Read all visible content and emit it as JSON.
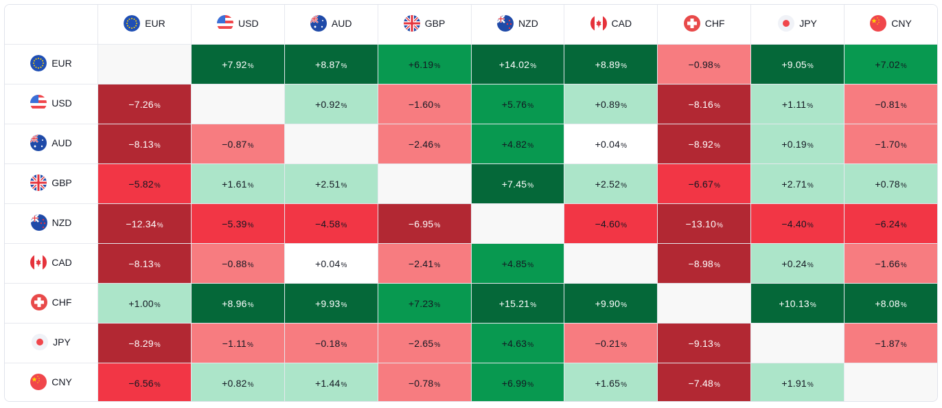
{
  "currencies": [
    {
      "code": "EUR",
      "flag": "eu-flag-icon"
    },
    {
      "code": "USD",
      "flag": "us-flag-icon"
    },
    {
      "code": "AUD",
      "flag": "au-flag-icon"
    },
    {
      "code": "GBP",
      "flag": "gb-flag-icon"
    },
    {
      "code": "NZD",
      "flag": "nz-flag-icon"
    },
    {
      "code": "CAD",
      "flag": "ca-flag-icon"
    },
    {
      "code": "CHF",
      "flag": "ch-flag-icon"
    },
    {
      "code": "JPY",
      "flag": "jp-flag-icon"
    },
    {
      "code": "CNY",
      "flag": "cn-flag-icon"
    }
  ],
  "percent_sign": "%",
  "colors": {
    "strong_up": "#056839",
    "up": "#089950",
    "light_up": "#ace5c9",
    "neutral": "#ffffff",
    "light_down": "#f77c80",
    "down": "#f23645",
    "strong_down": "#b22833",
    "diagonal": "#f8f8f8"
  },
  "matrix": [
    [
      null,
      "+7.92",
      "+8.87",
      "+6.19",
      "+14.02",
      "+8.89",
      "−0.98",
      "+9.05",
      "+7.02"
    ],
    [
      "−7.26",
      null,
      "+0.92",
      "−1.60",
      "+5.76",
      "+0.89",
      "−8.16",
      "+1.11",
      "−0.81"
    ],
    [
      "−8.13",
      "−0.87",
      null,
      "−2.46",
      "+4.82",
      "+0.04",
      "−8.92",
      "+0.19",
      "−1.70"
    ],
    [
      "−5.82",
      "+1.61",
      "+2.51",
      null,
      "+7.45",
      "+2.52",
      "−6.67",
      "+2.71",
      "+0.78"
    ],
    [
      "−12.34",
      "−5.39",
      "−4.58",
      "−6.95",
      null,
      "−4.60",
      "−13.10",
      "−4.40",
      "−6.24"
    ],
    [
      "−8.13",
      "−0.88",
      "+0.04",
      "−2.41",
      "+4.85",
      null,
      "−8.98",
      "+0.24",
      "−1.66"
    ],
    [
      "+1.00",
      "+8.96",
      "+9.93",
      "+7.23",
      "+15.21",
      "+9.90",
      null,
      "+10.13",
      "+8.08"
    ],
    [
      "−8.29",
      "−1.11",
      "−0.18",
      "−2.65",
      "+4.63",
      "−0.21",
      "−9.13",
      null,
      "−1.87"
    ],
    [
      "−6.56",
      "+0.82",
      "+1.44",
      "−0.78",
      "+6.99",
      "+1.65",
      "−7.48",
      "+1.91",
      null
    ]
  ]
}
